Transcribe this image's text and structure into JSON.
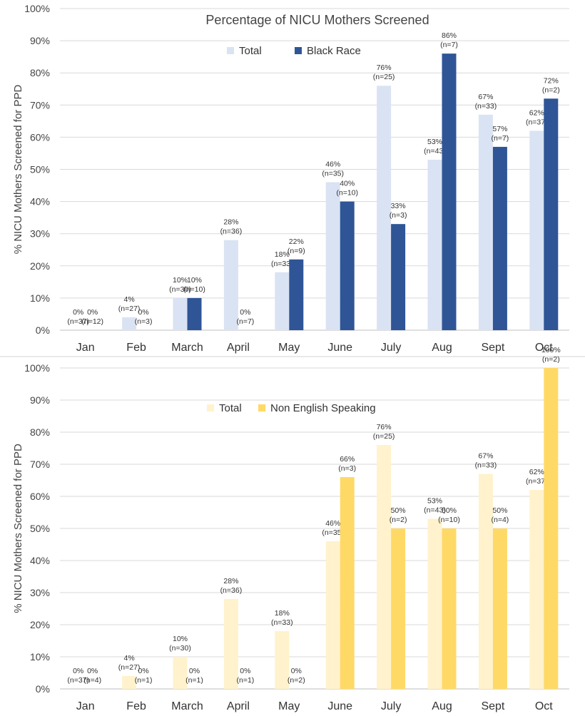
{
  "chart_data": [
    {
      "type": "bar",
      "title": "Percentage of NICU Mothers Screened",
      "ylabel": "% NICU Mothers Screened for PPD",
      "xlabel": "",
      "ylim": [
        0,
        100
      ],
      "yticks": [
        "0%",
        "10%",
        "20%",
        "30%",
        "40%",
        "50%",
        "60%",
        "70%",
        "80%",
        "90%",
        "100%"
      ],
      "grid": true,
      "legend_position": "top-center",
      "categories": [
        "Jan",
        "Feb",
        "March",
        "April",
        "May",
        "June",
        "July",
        "Aug",
        "Sept",
        "Oct"
      ],
      "series": [
        {
          "name": "Total",
          "color": "#dae3f3",
          "values": [
            0,
            4,
            10,
            28,
            18,
            46,
            76,
            53,
            67,
            62
          ],
          "labels": [
            "0%",
            "4%",
            "10%",
            "28%",
            "18%",
            "46%",
            "76%",
            "53%",
            "67%",
            "62%"
          ],
          "n_labels": [
            "(n=37)",
            "(n=27)",
            "(n=30)",
            "(n=36)",
            "(n=33)",
            "(n=35)",
            "(n=25)",
            "(n=43)",
            "(n=33)",
            "(n=37)"
          ]
        },
        {
          "name": "Black Race",
          "color": "#2f5597",
          "values": [
            0,
            0,
            10,
            0,
            22,
            40,
            33,
            86,
            57,
            72
          ],
          "labels": [
            "0%",
            "0%",
            "10%",
            "0%",
            "22%",
            "40%",
            "33%",
            "86%",
            "57%",
            "72%"
          ],
          "n_labels": [
            "(n=12)",
            "(n=3)",
            "(n=10)",
            "(n=7)",
            "(n=9)",
            "(n=10)",
            "(n=3)",
            "(n=7)",
            "(n=7)",
            "(n=2)"
          ]
        }
      ]
    },
    {
      "type": "bar",
      "title": "",
      "ylabel": "% NICU Mothers Screened for PPD",
      "xlabel": "",
      "ylim": [
        0,
        100
      ],
      "yticks": [
        "0%",
        "10%",
        "20%",
        "30%",
        "40%",
        "50%",
        "60%",
        "70%",
        "80%",
        "90%",
        "100%"
      ],
      "grid": true,
      "legend_position": "top-center",
      "categories": [
        "Jan",
        "Feb",
        "March",
        "April",
        "May",
        "June",
        "July",
        "Aug",
        "Sept",
        "Oct"
      ],
      "series": [
        {
          "name": "Total",
          "color": "#fff2cc",
          "values": [
            0,
            4,
            10,
            28,
            18,
            46,
            76,
            53,
            67,
            62
          ],
          "labels": [
            "0%",
            "4%",
            "10%",
            "28%",
            "18%",
            "46%",
            "76%",
            "53%",
            "67%",
            "62%"
          ],
          "n_labels": [
            "(n=37)",
            "(n=27)",
            "(n=30)",
            "(n=36)",
            "(n=33)",
            "(n=35)",
            "(n=25)",
            "(n=43)",
            "(n=33)",
            "(n=37)"
          ]
        },
        {
          "name": "Non English Speaking",
          "color": "#ffd966",
          "values": [
            0,
            0,
            0,
            0,
            0,
            66,
            50,
            50,
            50,
            100
          ],
          "labels": [
            "0%",
            "0%",
            "0%",
            "0%",
            "0%",
            "66%",
            "50%",
            "50%",
            "50%",
            "100%"
          ],
          "n_labels": [
            "(n=4)",
            "(n=1)",
            "(n=1)",
            "(n=1)",
            "(n=2)",
            "(n=3)",
            "(n=2)",
            "(n=10)",
            "(n=4)",
            "(n=2)"
          ]
        }
      ]
    }
  ]
}
